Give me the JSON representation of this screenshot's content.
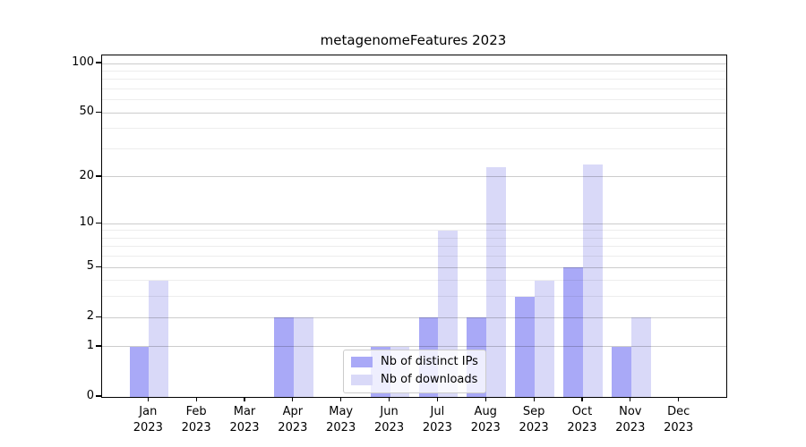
{
  "title": "metagenomeFeatures 2023",
  "legend": {
    "items": [
      {
        "label": "Nb of distinct IPs",
        "color": "#a9a9f7"
      },
      {
        "label": "Nb of downloads",
        "color": "#d9d9f8"
      }
    ]
  },
  "colors": {
    "distinct_ips_bar": "#a9a9f7",
    "downloads_bar": "#d9d9f8",
    "axis": "#000000",
    "grid_major": "#cbcbcb",
    "grid_minor": "#ececec",
    "legend_border": "#cccccc",
    "background": "#ffffff"
  },
  "chart_data": {
    "type": "bar",
    "title": "metagenomeFeatures 2023",
    "categories": [
      "Jan 2023",
      "Feb 2023",
      "Mar 2023",
      "Apr 2023",
      "May 2023",
      "Jun 2023",
      "Jul 2023",
      "Aug 2023",
      "Sep 2023",
      "Oct 2023",
      "Nov 2023",
      "Dec 2023"
    ],
    "series": [
      {
        "name": "Nb of distinct IPs",
        "color": "#a9a9f7",
        "values": [
          1,
          0,
          0,
          2,
          0,
          1,
          2,
          2,
          3,
          5,
          1,
          0
        ]
      },
      {
        "name": "Nb of downloads",
        "color": "#d9d9f8",
        "values": [
          4,
          0,
          0,
          2,
          0,
          1,
          9,
          23,
          4,
          24,
          2,
          0
        ]
      }
    ],
    "xlabel": "",
    "ylabel": "",
    "yscale": "log1p",
    "ylim": [
      0,
      100
    ],
    "yticks": [
      0,
      1,
      2,
      5,
      10,
      20,
      50,
      100
    ],
    "yticks_minor": [
      3,
      4,
      6,
      7,
      8,
      9,
      30,
      40,
      60,
      70,
      80,
      90
    ],
    "grid": "on",
    "legend_position": "lower center inside"
  }
}
